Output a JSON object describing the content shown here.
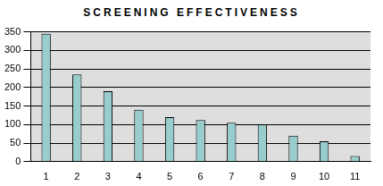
{
  "chart_data": {
    "type": "bar",
    "title": "SCREENING EFFECTIVENESS",
    "categories": [
      "1",
      "2",
      "3",
      "4",
      "5",
      "6",
      "7",
      "8",
      "9",
      "10",
      "11"
    ],
    "values": [
      345,
      235,
      190,
      140,
      120,
      112,
      105,
      100,
      70,
      55,
      15
    ],
    "color": "#99cccc",
    "ylim": [
      0,
      350
    ],
    "yticks": [
      0,
      50,
      100,
      150,
      200,
      250,
      300,
      350
    ],
    "grid": true
  }
}
